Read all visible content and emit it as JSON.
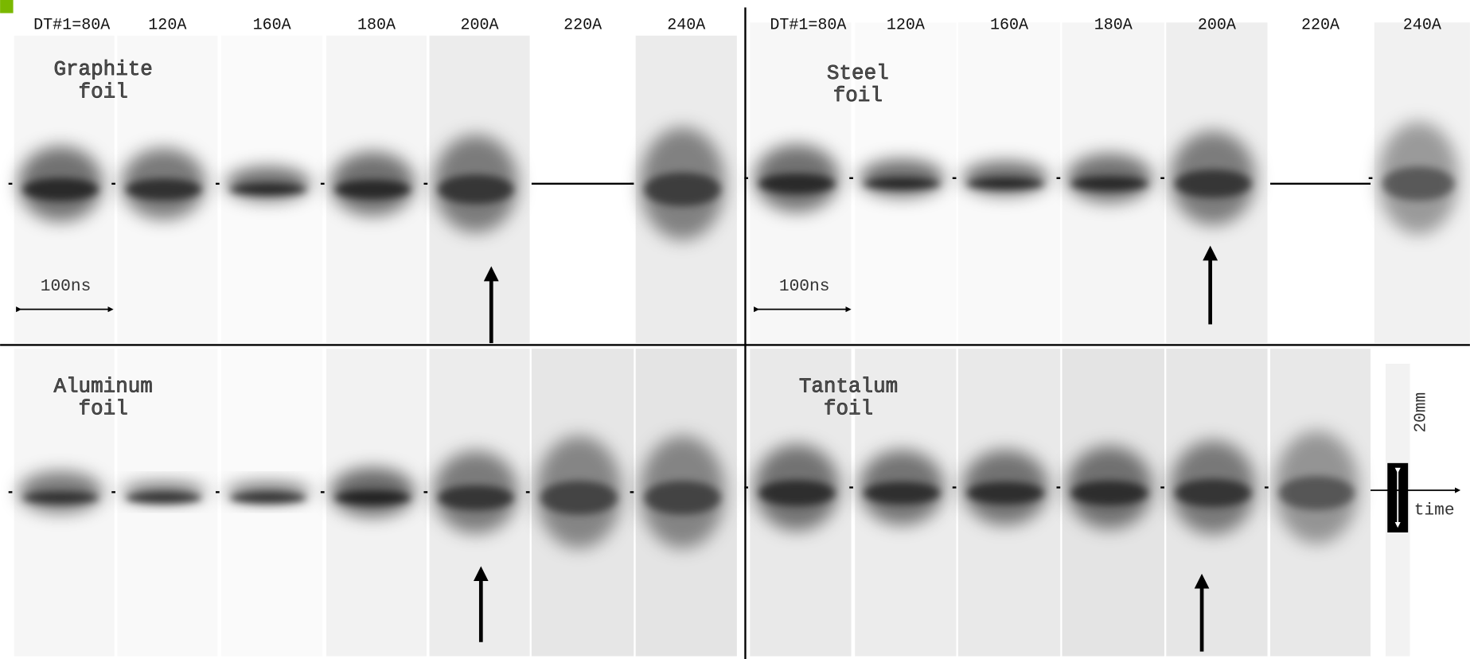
{
  "top_left": {
    "columns": [
      "DT#1=80A",
      "120A",
      "160A",
      "180A",
      "200A",
      "220A",
      "240A"
    ],
    "title_lines": [
      "Graphite",
      "foil"
    ],
    "scale_label": "100ns"
  },
  "top_right": {
    "columns": [
      "DT#1=80A",
      "120A",
      "160A",
      "180A",
      "200A",
      "220A",
      "240A"
    ],
    "title_lines": [
      "Steel",
      "foil"
    ],
    "scale_label": "100ns"
  },
  "bottom_left": {
    "title_lines": [
      "Aluminum",
      "foil"
    ]
  },
  "bottom_right": {
    "title_lines": [
      "Tantalum",
      "foil"
    ],
    "space_scale_label": "20mm",
    "time_label": "time"
  }
}
